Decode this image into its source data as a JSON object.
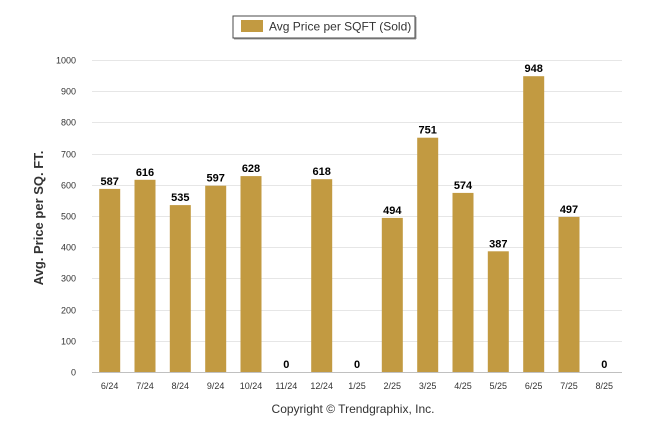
{
  "chart_data": {
    "type": "bar",
    "categories": [
      "6/24",
      "7/24",
      "8/24",
      "9/24",
      "10/24",
      "11/24",
      "12/24",
      "1/25",
      "2/25",
      "3/25",
      "4/25",
      "5/25",
      "6/25",
      "7/25",
      "8/25"
    ],
    "series": [
      {
        "name": "Avg Price per SQFT (Sold)",
        "values": [
          587,
          616,
          535,
          597,
          628,
          0,
          618,
          0,
          494,
          751,
          574,
          387,
          948,
          497,
          0
        ],
        "value_labels": [
          "587",
          "616",
          "535",
          "597",
          "628",
          "0",
          "618",
          "0",
          "494",
          "751",
          "574",
          "387",
          "948",
          "497",
          "0"
        ]
      }
    ],
    "ylabel": "Avg. Price per SQ. FT.",
    "ylim": [
      0,
      1000
    ],
    "yticks": [
      "0",
      "100",
      "200",
      "300",
      "400",
      "500",
      "600",
      "700",
      "800",
      "900",
      "1000"
    ],
    "grid": true,
    "legend_position": "top-center",
    "colors": {
      "bar": "#c29a41",
      "grid": "#e6e6e6",
      "axis": "#c0c0c0"
    }
  },
  "footer": {
    "copyright": "Copyright © Trendgraphix, Inc."
  }
}
